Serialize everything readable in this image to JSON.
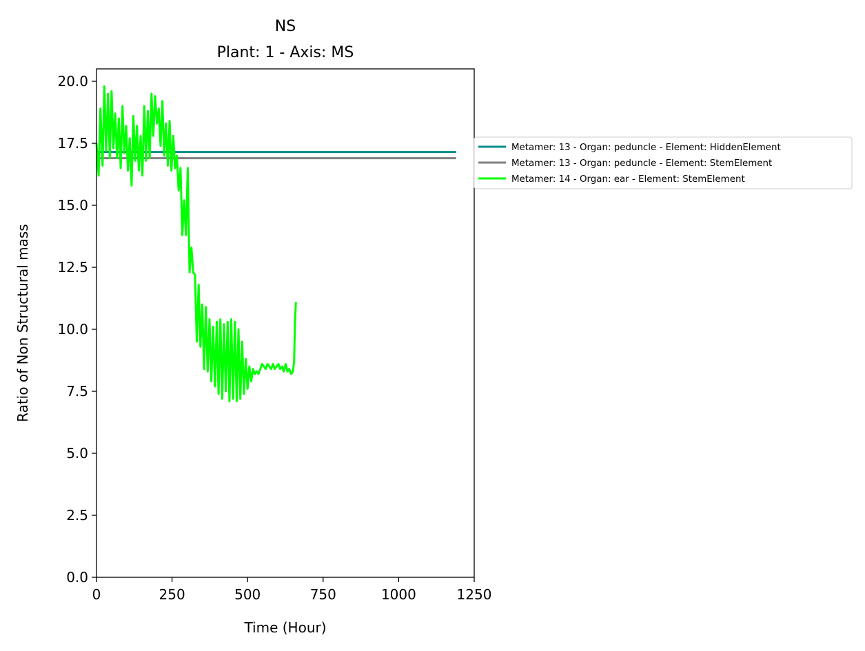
{
  "chart_data": {
    "type": "line",
    "title": "NS",
    "subtitle": "Plant: 1 - Axis: MS",
    "xlabel": "Time (Hour)",
    "ylabel": "Ratio of Non Structural mass",
    "xlim": [
      0,
      1250
    ],
    "ylim": [
      0,
      20.5
    ],
    "xticks": [
      0,
      250,
      500,
      750,
      1000,
      1250
    ],
    "xtick_labels": [
      "0",
      "250",
      "500",
      "750",
      "1000",
      "1250"
    ],
    "yticks": [
      0,
      2.5,
      5,
      7.5,
      10,
      12.5,
      15,
      17.5,
      20
    ],
    "ytick_labels": [
      "0.0",
      "2.5",
      "5.0",
      "7.5",
      "10.0",
      "12.5",
      "15.0",
      "17.5",
      "20.0"
    ],
    "grid": false,
    "legend_position": "outside right, upper",
    "series": [
      {
        "name": "Metamer: 13 - Organ: peduncle - Element: HiddenElement",
        "color": "#008b8b",
        "x": [
          0,
          1190
        ],
        "y": [
          17.15,
          17.15
        ]
      },
      {
        "name": "Metamer: 13 - Organ: peduncle - Element: StemElement",
        "color": "#808080",
        "x": [
          0,
          1190
        ],
        "y": [
          16.9,
          16.9
        ]
      },
      {
        "name": "Metamer: 14 - Organ: ear - Element: StemElement",
        "color": "#00ff00",
        "x": [
          0,
          7,
          13,
          20,
          26,
          32,
          38,
          44,
          50,
          56,
          62,
          68,
          74,
          80,
          86,
          92,
          98,
          104,
          110,
          116,
          122,
          128,
          134,
          140,
          146,
          152,
          158,
          164,
          170,
          176,
          182,
          188,
          194,
          200,
          206,
          212,
          218,
          224,
          230,
          236,
          242,
          248,
          254,
          260,
          266,
          272,
          278,
          284,
          290,
          296,
          302,
          308,
          314,
          320,
          326,
          332,
          338,
          344,
          350,
          356,
          362,
          368,
          374,
          380,
          386,
          392,
          398,
          404,
          410,
          416,
          422,
          428,
          434,
          440,
          446,
          452,
          458,
          464,
          470,
          476,
          482,
          488,
          494,
          500,
          506,
          512,
          518,
          524,
          530,
          536,
          542,
          548,
          554,
          560,
          566,
          572,
          578,
          584,
          590,
          596,
          602,
          608,
          614,
          620,
          626,
          632,
          638,
          644,
          650,
          654,
          657,
          660
        ],
        "y": [
          17.5,
          16.2,
          18.9,
          16.6,
          19.8,
          17.2,
          19.5,
          16.9,
          19.6,
          17.3,
          18.7,
          16.9,
          18.5,
          16.5,
          19.0,
          17.1,
          18.2,
          16.4,
          17.7,
          15.8,
          18.6,
          16.8,
          18.2,
          16.4,
          17.8,
          16.2,
          19.0,
          16.8,
          18.8,
          16.9,
          19.5,
          17.8,
          19.4,
          18.3,
          18.9,
          17.4,
          19.2,
          17.0,
          18.3,
          16.6,
          18.4,
          16.4,
          17.8,
          16.5,
          17.0,
          15.6,
          16.5,
          13.8,
          15.2,
          13.8,
          16.5,
          12.3,
          13.3,
          12.3,
          12.2,
          9.5,
          11.8,
          9.3,
          11.0,
          8.4,
          10.9,
          8.3,
          10.4,
          7.9,
          10.1,
          7.7,
          10.3,
          7.4,
          10.4,
          7.2,
          10.2,
          7.5,
          10.3,
          7.1,
          10.4,
          7.2,
          10.3,
          7.1,
          10.0,
          7.2,
          9.5,
          7.4,
          8.8,
          7.6,
          8.5,
          7.9,
          8.4,
          8.2,
          8.3,
          8.2,
          8.4,
          8.6,
          8.5,
          8.4,
          8.6,
          8.5,
          8.4,
          8.6,
          8.4,
          8.5,
          8.6,
          8.4,
          8.5,
          8.3,
          8.6,
          8.3,
          8.4,
          8.2,
          8.3,
          8.7,
          10.3,
          11.1
        ]
      }
    ]
  }
}
